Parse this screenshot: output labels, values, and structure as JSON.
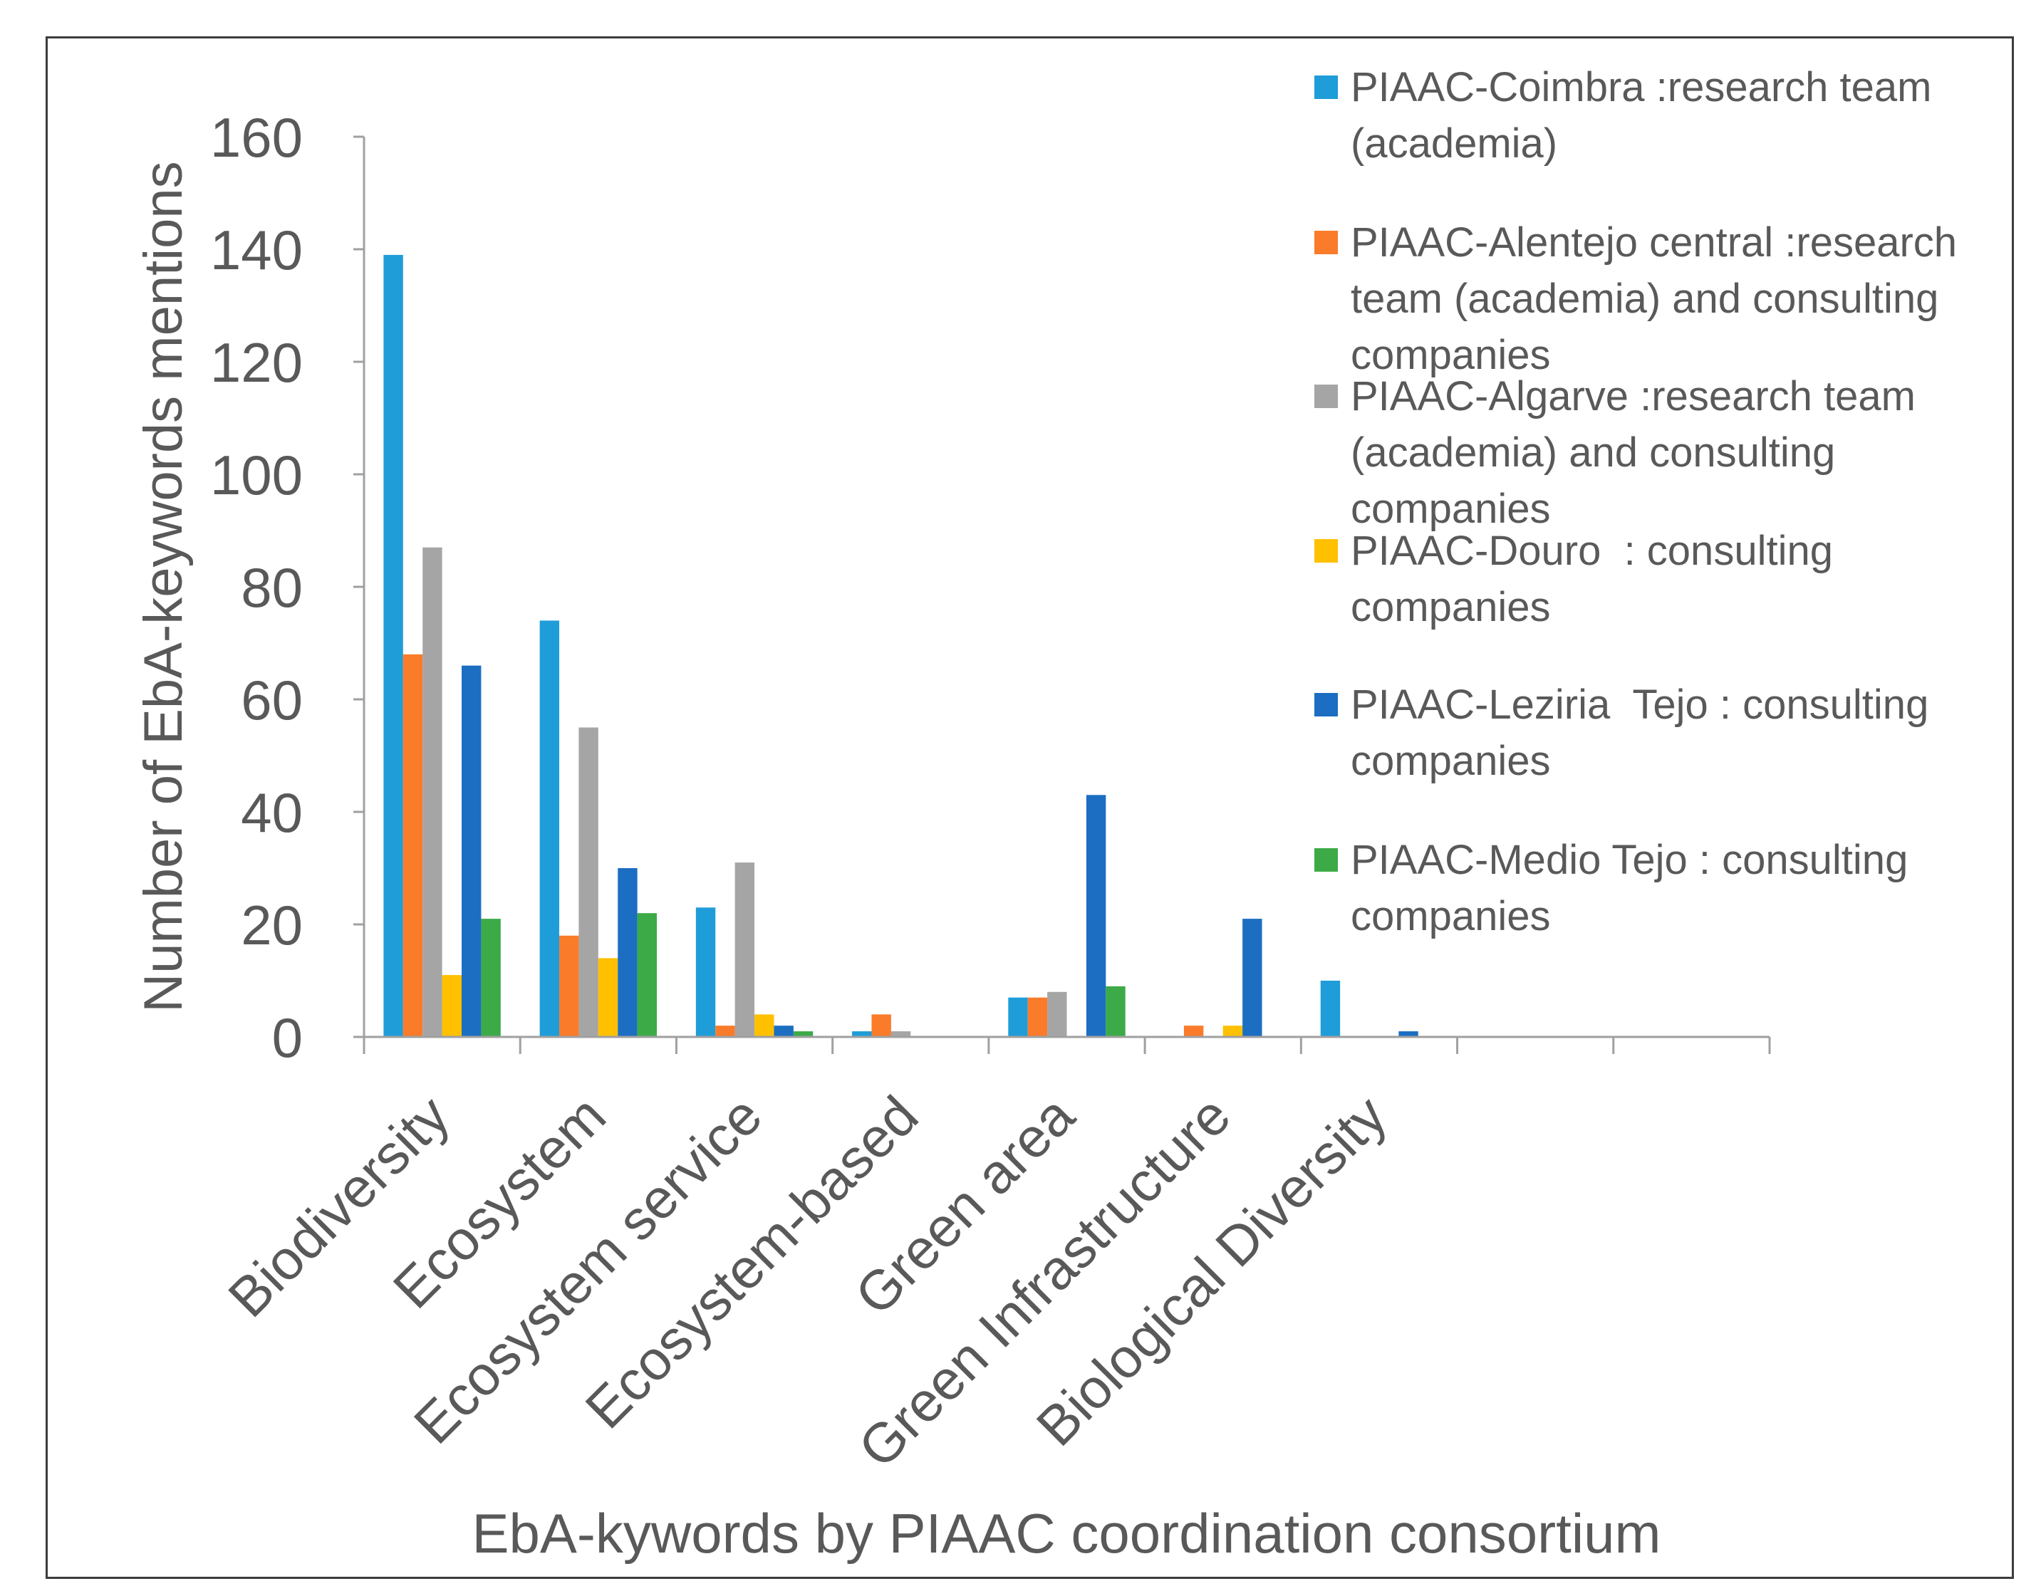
{
  "chart_data": {
    "type": "bar",
    "xlabel": "EbA-kywords by PIAAC coordination consortium",
    "ylabel": "Number of EbA-keywords mentions",
    "ylim": [
      0,
      160
    ],
    "yticks": [
      0,
      20,
      40,
      60,
      80,
      100,
      120,
      140,
      160
    ],
    "grid": false,
    "legend_position": "right",
    "categories": [
      "Biodiversity",
      "Ecosystem",
      "Ecosystem service",
      "Ecosystem-based",
      "Green area",
      "Green Infrastructure",
      "Biological Diversity",
      "",
      ""
    ],
    "series": [
      {
        "name": "PIAAC-Coimbra :research team (academia)",
        "color": "#1F9DD9",
        "values": [
          139,
          74,
          23,
          1,
          7,
          0,
          10,
          0,
          0
        ]
      },
      {
        "name": "PIAAC-Alentejo central :research team (academia) and consulting companies",
        "color": "#FA7B2A",
        "values": [
          68,
          18,
          2,
          4,
          7,
          2,
          0,
          0,
          0
        ]
      },
      {
        "name": "PIAAC-Algarve :research team (academia) and consulting companies",
        "color": "#A5A5A5",
        "values": [
          87,
          55,
          31,
          1,
          8,
          0,
          0,
          0,
          0
        ]
      },
      {
        "name": "PIAAC-Douro  : consulting companies",
        "color": "#FFC000",
        "values": [
          11,
          14,
          4,
          0,
          0,
          2,
          0,
          0,
          0
        ]
      },
      {
        "name": "PIAAC-Leziria  Tejo : consulting companies",
        "color": "#1B6EC2",
        "values": [
          66,
          30,
          2,
          0,
          43,
          21,
          1,
          0,
          0
        ]
      },
      {
        "name": "PIAAC-Medio Tejo : consulting companies",
        "color": "#3DAA48",
        "values": [
          21,
          22,
          1,
          0,
          9,
          0,
          0,
          0,
          0
        ]
      }
    ]
  }
}
